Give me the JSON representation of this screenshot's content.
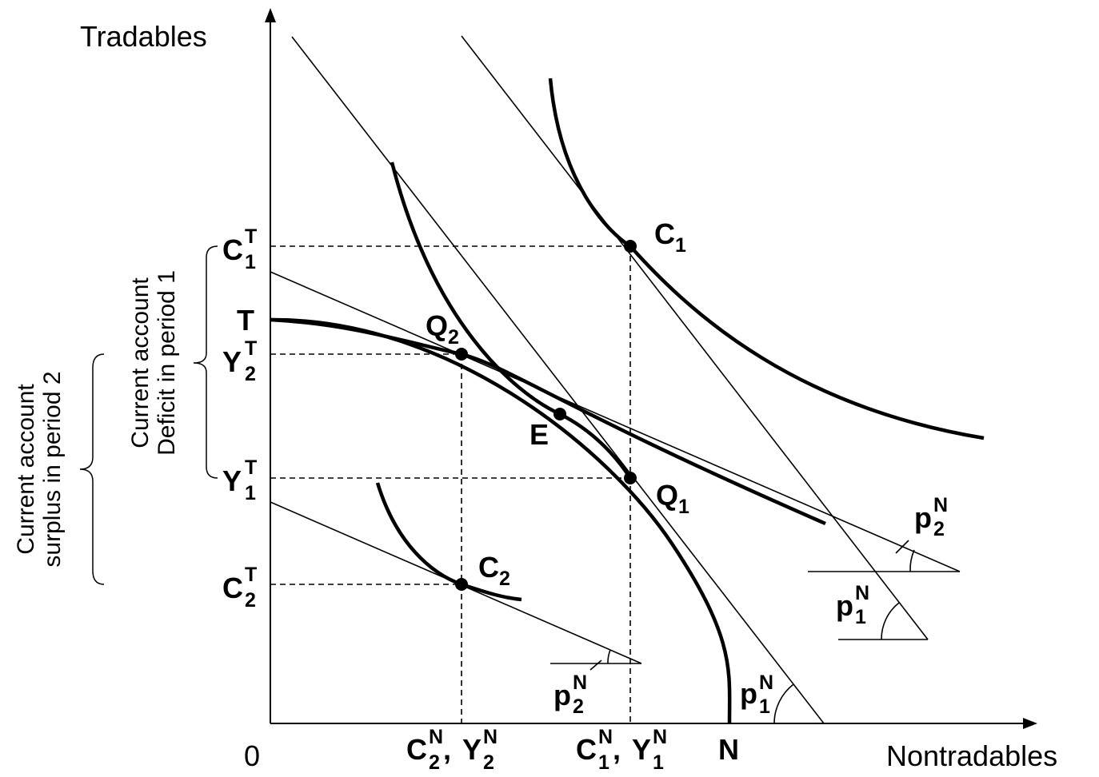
{
  "axes": {
    "y_title": "Tradables",
    "x_title": "Nontradables",
    "origin": "0"
  },
  "points": {
    "C1": {
      "main": "C",
      "sub": "1"
    },
    "C2": {
      "main": "C",
      "sub": "2"
    },
    "Q1": {
      "main": "Q",
      "sub": "1"
    },
    "Q2": {
      "main": "Q",
      "sub": "2"
    },
    "E": {
      "main": "E"
    }
  },
  "y_ticks": {
    "C1T": {
      "main": "C",
      "sup": "T",
      "sub": "1"
    },
    "T": {
      "main": "T"
    },
    "Y2T": {
      "main": "Y",
      "sup": "T",
      "sub": "2"
    },
    "Y1T": {
      "main": "Y",
      "sup": "T",
      "sub": "1"
    },
    "C2T": {
      "main": "C",
      "sup": "T",
      "sub": "2"
    }
  },
  "x_ticks": {
    "period2": {
      "a_main": "C",
      "a_sup": "N",
      "a_sub": "2",
      "sep": ",",
      "b_main": "Y",
      "b_sup": "N",
      "b_sub": "2"
    },
    "period1": {
      "a_main": "C",
      "a_sup": "N",
      "a_sub": "1",
      "sep": ",",
      "b_main": "Y",
      "b_sup": "N",
      "b_sub": "1"
    },
    "N": {
      "main": "N"
    }
  },
  "prices": {
    "p2_small": {
      "main": "p",
      "sup": "N",
      "sub": "2"
    },
    "p1_axis": {
      "main": "p",
      "sup": "N",
      "sub": "1"
    },
    "p2_right": {
      "main": "p",
      "sup": "N",
      "sub": "2"
    },
    "p1_right": {
      "main": "p",
      "sup": "N",
      "sub": "1"
    }
  },
  "current_account": {
    "deficit_line1": "Current account",
    "deficit_line2": "Deficit in period 1",
    "surplus_line1": "Current account",
    "surplus_line2": "surplus in period 2"
  }
}
